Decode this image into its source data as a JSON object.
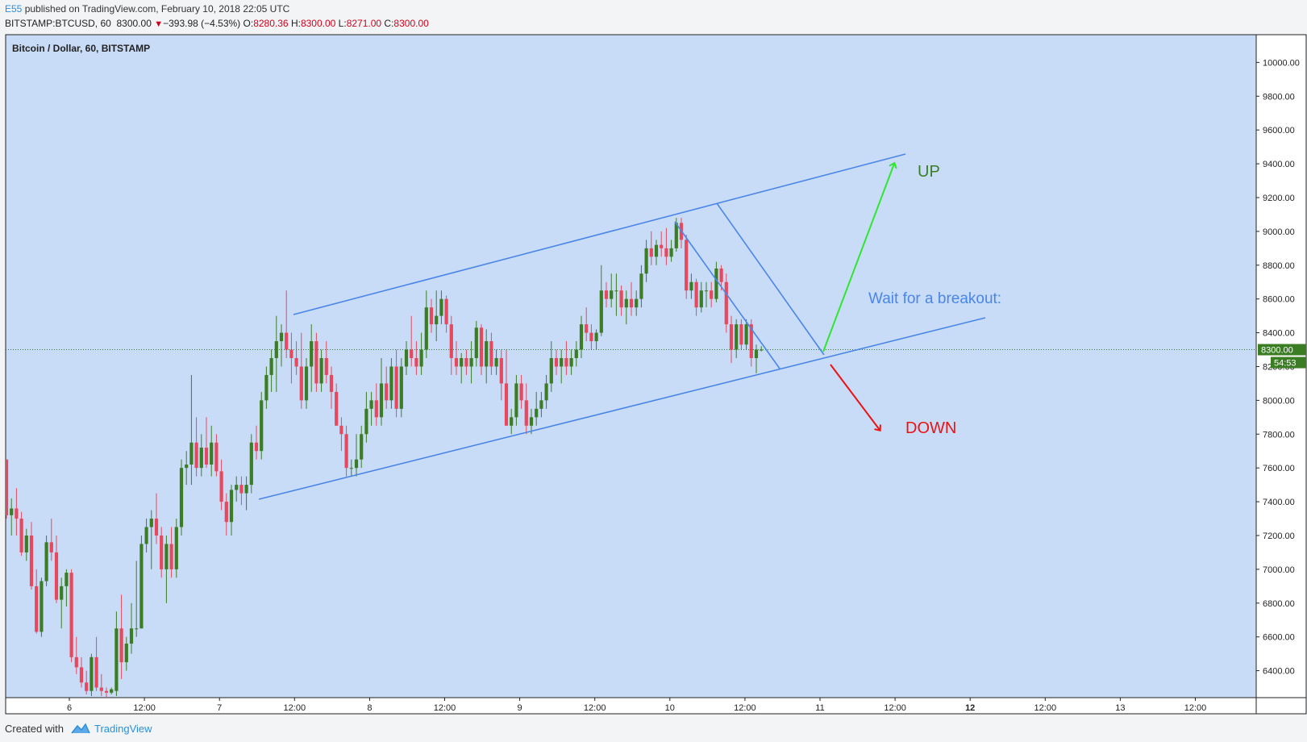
{
  "header": {
    "user": "E55",
    "published_text": "published on TradingView.com, February 10, 2018 22:05 UTC",
    "symbol": "BITSTAMP:BTCUSD, 60",
    "last_price": "8300.00",
    "change": "−393.98 (−4.53%)",
    "o_label": "O:",
    "o_value": "8280.36",
    "h_label": "H:",
    "h_value": "8300.00",
    "l_label": "L:",
    "l_value": "8271.00",
    "c_label": "C:",
    "c_value": "8300.00"
  },
  "footer": {
    "created_with": "Created with",
    "brand": "TradingView"
  },
  "colors": {
    "plot_bg": "#c9dcf7",
    "up": "#3b7d23",
    "down": "#e8485d",
    "trend": "#4a86e8",
    "arrow_up": "#2fe62f",
    "arrow_down": "#ee1111",
    "up_text": "#3b7d23",
    "down_text": "#ee1111",
    "note_text": "#4a86e8"
  },
  "chart_data": {
    "type": "candlestick",
    "title": "Bitcoin / Dollar, 60, BITSTAMP",
    "y_range": [
      6200,
      10050
    ],
    "y_ticks": [
      6400,
      6600,
      6800,
      7000,
      7200,
      7400,
      7600,
      7800,
      8000,
      8200,
      8400,
      8600,
      8800,
      9000,
      9200,
      9400,
      9600,
      9800,
      10000
    ],
    "y_tick_labels": [
      "6400.00",
      "6600.00",
      "6800.00",
      "7000.00",
      "7200.00",
      "7400.00",
      "7600.00",
      "7800.00",
      "8000.00",
      "8200.00",
      "8400.00",
      "8600.00",
      "8800.00",
      "9000.00",
      "9200.00",
      "9400.00",
      "9600.00",
      "9800.00",
      "10000.00"
    ],
    "x_ticks": [
      {
        "label": "6",
        "bold": false
      },
      {
        "label": "12:00",
        "bold": false
      },
      {
        "label": "7",
        "bold": false
      },
      {
        "label": "12:00",
        "bold": false
      },
      {
        "label": "8",
        "bold": false
      },
      {
        "label": "12:00",
        "bold": false
      },
      {
        "label": "9",
        "bold": false
      },
      {
        "label": "12:00",
        "bold": false
      },
      {
        "label": "10",
        "bold": false
      },
      {
        "label": "12:00",
        "bold": false
      },
      {
        "label": "11",
        "bold": false
      },
      {
        "label": "12:00",
        "bold": false
      },
      {
        "label": "12",
        "bold": true
      },
      {
        "label": "12:00",
        "bold": false
      },
      {
        "label": "13",
        "bold": false
      },
      {
        "label": "12:00",
        "bold": false
      }
    ],
    "current_price": 8300,
    "current_price_label": "8300.00",
    "countdown_label": "54:53",
    "candles": [
      {
        "o": 7650,
        "h": 7650,
        "l": 7300,
        "c": 7320
      },
      {
        "o": 7320,
        "h": 7420,
        "l": 7200,
        "c": 7360
      },
      {
        "o": 7360,
        "h": 7480,
        "l": 7200,
        "c": 7300
      },
      {
        "o": 7300,
        "h": 7340,
        "l": 7080,
        "c": 7100
      },
      {
        "o": 7100,
        "h": 7240,
        "l": 7050,
        "c": 7200
      },
      {
        "o": 7200,
        "h": 7280,
        "l": 6880,
        "c": 6900
      },
      {
        "o": 6900,
        "h": 7000,
        "l": 6620,
        "c": 6630
      },
      {
        "o": 6630,
        "h": 6950,
        "l": 6600,
        "c": 6930
      },
      {
        "o": 6930,
        "h": 7200,
        "l": 6900,
        "c": 7160
      },
      {
        "o": 7160,
        "h": 7300,
        "l": 7050,
        "c": 7100
      },
      {
        "o": 7100,
        "h": 7200,
        "l": 6800,
        "c": 6820
      },
      {
        "o": 6820,
        "h": 6950,
        "l": 6650,
        "c": 6900
      },
      {
        "o": 6900,
        "h": 7000,
        "l": 6780,
        "c": 6980
      },
      {
        "o": 6980,
        "h": 7000,
        "l": 6450,
        "c": 6480
      },
      {
        "o": 6480,
        "h": 6600,
        "l": 6380,
        "c": 6420
      },
      {
        "o": 6420,
        "h": 6480,
        "l": 6300,
        "c": 6330
      },
      {
        "o": 6330,
        "h": 6400,
        "l": 6260,
        "c": 6280
      },
      {
        "o": 6280,
        "h": 6500,
        "l": 6250,
        "c": 6480
      },
      {
        "o": 6480,
        "h": 6600,
        "l": 6280,
        "c": 6300
      },
      {
        "o": 6300,
        "h": 6380,
        "l": 6250,
        "c": 6280
      },
      {
        "o": 6280,
        "h": 6300,
        "l": 6220,
        "c": 6270
      },
      {
        "o": 6270,
        "h": 6300,
        "l": 6260,
        "c": 6290
      },
      {
        "o": 6280,
        "h": 6750,
        "l": 6250,
        "c": 6650
      },
      {
        "o": 6650,
        "h": 6850,
        "l": 6350,
        "c": 6450
      },
      {
        "o": 6450,
        "h": 6600,
        "l": 6400,
        "c": 6560
      },
      {
        "o": 6560,
        "h": 6800,
        "l": 6500,
        "c": 6650
      },
      {
        "o": 6650,
        "h": 7050,
        "l": 6600,
        "c": 6650
      },
      {
        "o": 6650,
        "h": 7200,
        "l": 6650,
        "c": 7150
      },
      {
        "o": 7150,
        "h": 7300,
        "l": 7100,
        "c": 7250
      },
      {
        "o": 7250,
        "h": 7350,
        "l": 7000,
        "c": 7300
      },
      {
        "o": 7300,
        "h": 7450,
        "l": 7150,
        "c": 7200
      },
      {
        "o": 7200,
        "h": 7250,
        "l": 6950,
        "c": 7000
      },
      {
        "o": 7000,
        "h": 7200,
        "l": 6800,
        "c": 7150
      },
      {
        "o": 7150,
        "h": 7250,
        "l": 6950,
        "c": 7000
      },
      {
        "o": 7000,
        "h": 7300,
        "l": 6950,
        "c": 7250
      },
      {
        "o": 7250,
        "h": 7650,
        "l": 7200,
        "c": 7600
      },
      {
        "o": 7600,
        "h": 7700,
        "l": 7500,
        "c": 7620
      },
      {
        "o": 7620,
        "h": 8150,
        "l": 7500,
        "c": 7750
      },
      {
        "o": 7750,
        "h": 7900,
        "l": 7550,
        "c": 7600
      },
      {
        "o": 7600,
        "h": 7800,
        "l": 7550,
        "c": 7720
      },
      {
        "o": 7720,
        "h": 7900,
        "l": 7600,
        "c": 7620
      },
      {
        "o": 7620,
        "h": 7850,
        "l": 7550,
        "c": 7750
      },
      {
        "o": 7750,
        "h": 7800,
        "l": 7550,
        "c": 7580
      },
      {
        "o": 7580,
        "h": 7650,
        "l": 7350,
        "c": 7400
      },
      {
        "o": 7400,
        "h": 7450,
        "l": 7200,
        "c": 7280
      },
      {
        "o": 7280,
        "h": 7500,
        "l": 7200,
        "c": 7470
      },
      {
        "o": 7470,
        "h": 7550,
        "l": 7400,
        "c": 7500
      },
      {
        "o": 7500,
        "h": 7550,
        "l": 7380,
        "c": 7450
      },
      {
        "o": 7450,
        "h": 7550,
        "l": 7350,
        "c": 7500
      },
      {
        "o": 7500,
        "h": 7800,
        "l": 7450,
        "c": 7750
      },
      {
        "o": 7750,
        "h": 7850,
        "l": 7650,
        "c": 7700
      },
      {
        "o": 7700,
        "h": 8050,
        "l": 7650,
        "c": 8000
      },
      {
        "o": 8000,
        "h": 8200,
        "l": 7950,
        "c": 8150
      },
      {
        "o": 8150,
        "h": 8300,
        "l": 8050,
        "c": 8250
      },
      {
        "o": 8250,
        "h": 8500,
        "l": 8050,
        "c": 8350
      },
      {
        "o": 8350,
        "h": 8450,
        "l": 8200,
        "c": 8400
      },
      {
        "o": 8400,
        "h": 8650,
        "l": 8250,
        "c": 8300
      },
      {
        "o": 8300,
        "h": 8400,
        "l": 8100,
        "c": 8250
      },
      {
        "o": 8250,
        "h": 8350,
        "l": 8150,
        "c": 8200
      },
      {
        "o": 8200,
        "h": 8400,
        "l": 7950,
        "c": 8000
      },
      {
        "o": 8000,
        "h": 8250,
        "l": 7950,
        "c": 8200
      },
      {
        "o": 8200,
        "h": 8450,
        "l": 8050,
        "c": 8350
      },
      {
        "o": 8350,
        "h": 8400,
        "l": 8050,
        "c": 8100
      },
      {
        "o": 8100,
        "h": 8300,
        "l": 8050,
        "c": 8250
      },
      {
        "o": 8250,
        "h": 8350,
        "l": 8100,
        "c": 8150
      },
      {
        "o": 8150,
        "h": 8200,
        "l": 7950,
        "c": 8050
      },
      {
        "o": 8050,
        "h": 8100,
        "l": 7850,
        "c": 7850
      },
      {
        "o": 7850,
        "h": 7900,
        "l": 7700,
        "c": 7800
      },
      {
        "o": 7800,
        "h": 7850,
        "l": 7550,
        "c": 7600
      },
      {
        "o": 7600,
        "h": 7650,
        "l": 7550,
        "c": 7600
      },
      {
        "o": 7600,
        "h": 7800,
        "l": 7550,
        "c": 7650
      },
      {
        "o": 7650,
        "h": 7850,
        "l": 7600,
        "c": 7800
      },
      {
        "o": 7800,
        "h": 8050,
        "l": 7750,
        "c": 7950
      },
      {
        "o": 7950,
        "h": 8050,
        "l": 7850,
        "c": 8000
      },
      {
        "o": 8000,
        "h": 8100,
        "l": 7850,
        "c": 7900
      },
      {
        "o": 7900,
        "h": 8250,
        "l": 7850,
        "c": 8100
      },
      {
        "o": 8100,
        "h": 8200,
        "l": 7950,
        "c": 8000
      },
      {
        "o": 8000,
        "h": 8250,
        "l": 7950,
        "c": 8200
      },
      {
        "o": 8200,
        "h": 8300,
        "l": 7900,
        "c": 7950
      },
      {
        "o": 7950,
        "h": 8250,
        "l": 7900,
        "c": 8200
      },
      {
        "o": 8200,
        "h": 8350,
        "l": 8150,
        "c": 8300
      },
      {
        "o": 8300,
        "h": 8500,
        "l": 8200,
        "c": 8250
      },
      {
        "o": 8250,
        "h": 8350,
        "l": 8150,
        "c": 8200
      },
      {
        "o": 8200,
        "h": 8400,
        "l": 8150,
        "c": 8300
      },
      {
        "o": 8300,
        "h": 8650,
        "l": 8250,
        "c": 8550
      },
      {
        "o": 8550,
        "h": 8600,
        "l": 8400,
        "c": 8450
      },
      {
        "o": 8450,
        "h": 8650,
        "l": 8350,
        "c": 8500
      },
      {
        "o": 8500,
        "h": 8650,
        "l": 8450,
        "c": 8600
      },
      {
        "o": 8600,
        "h": 8620,
        "l": 8400,
        "c": 8450
      },
      {
        "o": 8450,
        "h": 8500,
        "l": 8150,
        "c": 8250
      },
      {
        "o": 8250,
        "h": 8350,
        "l": 8150,
        "c": 8200
      },
      {
        "o": 8200,
        "h": 8280,
        "l": 8100,
        "c": 8250
      },
      {
        "o": 8250,
        "h": 8300,
        "l": 8150,
        "c": 8200
      },
      {
        "o": 8200,
        "h": 8350,
        "l": 8100,
        "c": 8250
      },
      {
        "o": 8250,
        "h": 8470,
        "l": 8200,
        "c": 8430
      },
      {
        "o": 8430,
        "h": 8450,
        "l": 8150,
        "c": 8200
      },
      {
        "o": 8200,
        "h": 8420,
        "l": 8100,
        "c": 8350
      },
      {
        "o": 8350,
        "h": 8400,
        "l": 8150,
        "c": 8200
      },
      {
        "o": 8200,
        "h": 8300,
        "l": 8150,
        "c": 8250
      },
      {
        "o": 8250,
        "h": 8300,
        "l": 8000,
        "c": 8100
      },
      {
        "o": 8100,
        "h": 8300,
        "l": 7850,
        "c": 7850
      },
      {
        "o": 7850,
        "h": 7950,
        "l": 7800,
        "c": 7900
      },
      {
        "o": 7900,
        "h": 8150,
        "l": 7850,
        "c": 8100
      },
      {
        "o": 8100,
        "h": 8150,
        "l": 7950,
        "c": 8000
      },
      {
        "o": 8000,
        "h": 8100,
        "l": 7800,
        "c": 7850
      },
      {
        "o": 7850,
        "h": 7950,
        "l": 7800,
        "c": 7900
      },
      {
        "o": 7900,
        "h": 8050,
        "l": 7850,
        "c": 7950
      },
      {
        "o": 7950,
        "h": 8050,
        "l": 7900,
        "c": 8000
      },
      {
        "o": 8000,
        "h": 8150,
        "l": 7950,
        "c": 8100
      },
      {
        "o": 8100,
        "h": 8350,
        "l": 8050,
        "c": 8250
      },
      {
        "o": 8250,
        "h": 8300,
        "l": 8150,
        "c": 8200
      },
      {
        "o": 8200,
        "h": 8300,
        "l": 8100,
        "c": 8250
      },
      {
        "o": 8250,
        "h": 8350,
        "l": 8150,
        "c": 8200
      },
      {
        "o": 8200,
        "h": 8300,
        "l": 8150,
        "c": 8250
      },
      {
        "o": 8250,
        "h": 8350,
        "l": 8200,
        "c": 8300
      },
      {
        "o": 8300,
        "h": 8500,
        "l": 8250,
        "c": 8450
      },
      {
        "o": 8450,
        "h": 8550,
        "l": 8350,
        "c": 8400
      },
      {
        "o": 8400,
        "h": 8450,
        "l": 8300,
        "c": 8350
      },
      {
        "o": 8350,
        "h": 8420,
        "l": 8300,
        "c": 8400
      },
      {
        "o": 8400,
        "h": 8800,
        "l": 8380,
        "c": 8650
      },
      {
        "o": 8650,
        "h": 8700,
        "l": 8550,
        "c": 8600
      },
      {
        "o": 8600,
        "h": 8750,
        "l": 8550,
        "c": 8650
      },
      {
        "o": 8650,
        "h": 8750,
        "l": 8500,
        "c": 8650
      },
      {
        "o": 8650,
        "h": 8680,
        "l": 8500,
        "c": 8550
      },
      {
        "o": 8550,
        "h": 8650,
        "l": 8450,
        "c": 8600
      },
      {
        "o": 8600,
        "h": 8700,
        "l": 8500,
        "c": 8550
      },
      {
        "o": 8550,
        "h": 8650,
        "l": 8500,
        "c": 8600
      },
      {
        "o": 8600,
        "h": 8800,
        "l": 8550,
        "c": 8750
      },
      {
        "o": 8750,
        "h": 8950,
        "l": 8700,
        "c": 8900
      },
      {
        "o": 8900,
        "h": 9000,
        "l": 8800,
        "c": 8850
      },
      {
        "o": 8850,
        "h": 8950,
        "l": 8800,
        "c": 8920
      },
      {
        "o": 8920,
        "h": 9000,
        "l": 8850,
        "c": 8900
      },
      {
        "o": 8900,
        "h": 9020,
        "l": 8800,
        "c": 8850
      },
      {
        "o": 8850,
        "h": 8950,
        "l": 8820,
        "c": 8900
      },
      {
        "o": 8900,
        "h": 9080,
        "l": 8880,
        "c": 9050
      },
      {
        "o": 9050,
        "h": 9080,
        "l": 8900,
        "c": 8950
      },
      {
        "o": 8950,
        "h": 8980,
        "l": 8600,
        "c": 8650
      },
      {
        "o": 8650,
        "h": 8750,
        "l": 8600,
        "c": 8700
      },
      {
        "o": 8700,
        "h": 8720,
        "l": 8500,
        "c": 8550
      },
      {
        "o": 8550,
        "h": 8700,
        "l": 8520,
        "c": 8650
      },
      {
        "o": 8650,
        "h": 8700,
        "l": 8550,
        "c": 8650
      },
      {
        "o": 8650,
        "h": 8700,
        "l": 8550,
        "c": 8600
      },
      {
        "o": 8600,
        "h": 8820,
        "l": 8580,
        "c": 8780
      },
      {
        "o": 8780,
        "h": 8800,
        "l": 8650,
        "c": 8700
      },
      {
        "o": 8700,
        "h": 8750,
        "l": 8400,
        "c": 8450
      },
      {
        "o": 8450,
        "h": 8500,
        "l": 8220,
        "c": 8300
      },
      {
        "o": 8300,
        "h": 8480,
        "l": 8250,
        "c": 8450
      },
      {
        "o": 8450,
        "h": 8480,
        "l": 8300,
        "c": 8330
      },
      {
        "o": 8330,
        "h": 8480,
        "l": 8300,
        "c": 8450
      },
      {
        "o": 8450,
        "h": 8480,
        "l": 8200,
        "c": 8250
      },
      {
        "o": 8250,
        "h": 8330,
        "l": 8160,
        "c": 8300
      },
      {
        "o": 8300,
        "h": 8320,
        "l": 8290,
        "c": 8300
      }
    ],
    "annotations": {
      "up_label": "UP",
      "down_label": "DOWN",
      "note": "Wait for a breakout:"
    }
  }
}
